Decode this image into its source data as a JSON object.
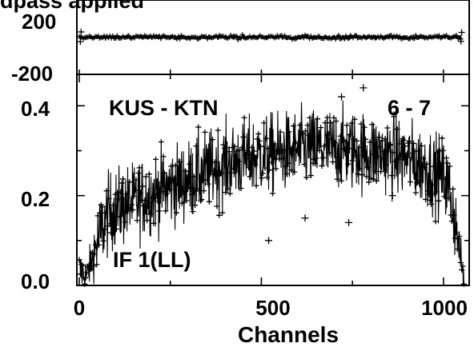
{
  "chart_data": [
    {
      "panel": "phase",
      "type": "scatter",
      "title": "dpass applied",
      "y_ticks": [
        "200",
        "-200"
      ],
      "ylim": [
        -200,
        200
      ],
      "xlim": [
        0,
        1064
      ],
      "marker": "+",
      "series": [
        {
          "channel_range": [
            0,
            1050
          ],
          "typical_value": 0,
          "spread": [
            -20,
            20
          ],
          "edge_excursions": [
            {
              "channel": 3,
              "value": -30
            },
            {
              "channel": 5,
              "value": 35
            },
            {
              "channel": 1048,
              "value": -28
            },
            {
              "channel": 1050,
              "value": 32
            }
          ]
        }
      ]
    },
    {
      "panel": "amplitude",
      "type": "scatter",
      "xlabel": "Channels",
      "x_ticks": [
        "0",
        "500",
        "1000"
      ],
      "y_ticks": [
        "0.0",
        "0.2",
        "0.4"
      ],
      "xlim": [
        0,
        1064
      ],
      "ylim": [
        0,
        0.47
      ],
      "marker": "+",
      "annotations": [
        "KUS - KTN",
        "6 - 7",
        "IF 1(LL)"
      ],
      "series": [
        {
          "profile": [
            {
              "channel": 0,
              "value": 0.035
            },
            {
              "channel": 20,
              "value": 0.02
            },
            {
              "channel": 40,
              "value": 0.07
            },
            {
              "channel": 60,
              "value": 0.12
            },
            {
              "channel": 80,
              "value": 0.16
            },
            {
              "channel": 100,
              "value": 0.17
            },
            {
              "channel": 150,
              "value": 0.185
            },
            {
              "channel": 200,
              "value": 0.205
            },
            {
              "channel": 250,
              "value": 0.22
            },
            {
              "channel": 300,
              "value": 0.235
            },
            {
              "channel": 350,
              "value": 0.255
            },
            {
              "channel": 400,
              "value": 0.27
            },
            {
              "channel": 450,
              "value": 0.28
            },
            {
              "channel": 500,
              "value": 0.29
            },
            {
              "channel": 550,
              "value": 0.295
            },
            {
              "channel": 600,
              "value": 0.3
            },
            {
              "channel": 650,
              "value": 0.305
            },
            {
              "channel": 700,
              "value": 0.305
            },
            {
              "channel": 750,
              "value": 0.3
            },
            {
              "channel": 800,
              "value": 0.295
            },
            {
              "channel": 850,
              "value": 0.29
            },
            {
              "channel": 900,
              "value": 0.28
            },
            {
              "channel": 950,
              "value": 0.265
            },
            {
              "channel": 1000,
              "value": 0.24
            },
            {
              "channel": 1020,
              "value": 0.2
            },
            {
              "channel": 1035,
              "value": 0.13
            },
            {
              "channel": 1045,
              "value": 0.07
            },
            {
              "channel": 1055,
              "value": 0.02
            }
          ],
          "noise_amplitude": 0.045,
          "outliers": [
            {
              "channel": 315,
              "value": 0.21
            },
            {
              "channel": 520,
              "value": 0.1
            },
            {
              "channel": 620,
              "value": 0.15
            },
            {
              "channel": 720,
              "value": 0.42
            },
            {
              "channel": 780,
              "value": 0.44
            },
            {
              "channel": 740,
              "value": 0.14
            },
            {
              "channel": 860,
              "value": 0.2
            }
          ]
        }
      ]
    }
  ]
}
